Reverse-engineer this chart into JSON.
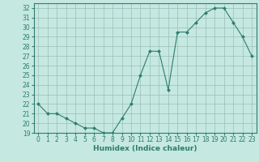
{
  "x": [
    0,
    1,
    2,
    3,
    4,
    5,
    6,
    7,
    8,
    9,
    10,
    11,
    12,
    13,
    14,
    15,
    16,
    17,
    18,
    19,
    20,
    21,
    22,
    23
  ],
  "y": [
    22,
    21,
    21,
    20.5,
    20,
    19.5,
    19.5,
    19,
    19,
    20.5,
    22,
    25,
    27.5,
    27.5,
    23.5,
    29.5,
    29.5,
    30.5,
    31.5,
    32,
    32,
    30.5,
    29,
    27
  ],
  "line_color": "#2e7d6e",
  "marker_color": "#2e7d6e",
  "bg_color": "#c5e8e0",
  "grid_color": "#9bbfb8",
  "xlabel": "Humidex (Indice chaleur)",
  "xlim": [
    -0.5,
    23.5
  ],
  "ylim": [
    19,
    32.5
  ],
  "yticks": [
    19,
    20,
    21,
    22,
    23,
    24,
    25,
    26,
    27,
    28,
    29,
    30,
    31,
    32
  ],
  "xticks": [
    0,
    1,
    2,
    3,
    4,
    5,
    6,
    7,
    8,
    9,
    10,
    11,
    12,
    13,
    14,
    15,
    16,
    17,
    18,
    19,
    20,
    21,
    22,
    23
  ],
  "tick_label_fontsize": 5.5,
  "xlabel_fontsize": 6.5,
  "line_width": 0.8,
  "marker_size": 2.0
}
